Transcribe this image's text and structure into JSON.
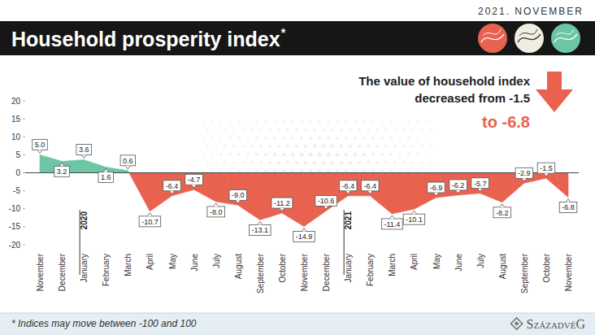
{
  "header": {
    "date": "2021. NOVEMBER"
  },
  "chart_data": {
    "type": "area",
    "title": "Household prosperity index",
    "title_mark": "*",
    "categories": [
      "November",
      "December",
      "January",
      "February",
      "March",
      "April",
      "May",
      "June",
      "July",
      "August",
      "September",
      "October",
      "November",
      "December",
      "January",
      "February",
      "March",
      "April",
      "May",
      "June",
      "July",
      "August",
      "September",
      "October",
      "November"
    ],
    "values": [
      5.0,
      3.2,
      3.6,
      1.6,
      0.6,
      -10.7,
      -6.4,
      -4.7,
      -8.0,
      -9.0,
      -13.1,
      -11.2,
      -14.9,
      -10.6,
      -6.4,
      -6.4,
      -11.4,
      -10.1,
      -6.9,
      -6.2,
      -5.7,
      -8.2,
      -2.9,
      -1.5,
      -6.8
    ],
    "value_labels": [
      "5.0",
      "3.2",
      "3.6",
      "1.6",
      "0.6",
      "-10.7",
      "-6.4",
      "-4.7",
      "-8.0",
      "-9.0",
      "-13.1",
      "-11.2",
      "-14.9",
      "-10.6",
      "-6.4",
      "-6.4",
      "-11.4",
      "-10.1",
      "-6.9",
      "-6.2",
      "-5.7",
      "-8.2",
      "-2.9",
      "-1.5",
      "-6.8"
    ],
    "colors": [
      "#6cc6a3",
      "#6cc6a3",
      "#6cc6a3",
      "#6cc6a3",
      "#6cc6a3",
      "#e8624f",
      "#e8624f",
      "#e8624f",
      "#e8624f",
      "#e8624f",
      "#e8624f",
      "#e8624f",
      "#e8624f",
      "#e8624f",
      "#e8624f",
      "#e8624f",
      "#e8624f",
      "#e8624f",
      "#e8624f",
      "#e8624f",
      "#e8624f",
      "#e8624f",
      "#e8624f",
      "#e8624f",
      "#e8624f"
    ],
    "ylim": [
      -20,
      20
    ],
    "yticks": [
      -20,
      -15,
      -10,
      -5,
      0,
      5,
      10,
      15,
      20
    ],
    "grid": false,
    "data_labels": true,
    "year_labels": [
      {
        "text": "2020",
        "index": 2
      },
      {
        "text": "2021",
        "index": 14
      }
    ],
    "annotations": [
      "The value of household index",
      "decreased from -1.5",
      "to -6.8"
    ]
  },
  "footer": {
    "note": "* Indices may move between -100 and 100",
    "logo": "SzázadvéG"
  }
}
